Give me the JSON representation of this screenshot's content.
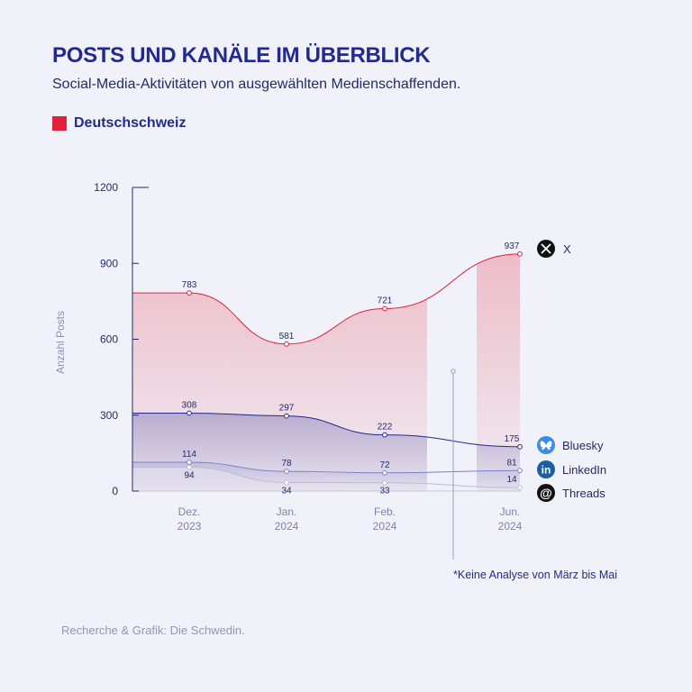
{
  "header": {
    "title": "POSTS UND KANÄLE IM ÜBERBLICK",
    "subtitle": "Social-Media-Aktivitäten von ausgewählten Medienschaffenden."
  },
  "region_legend": {
    "label": "Deutschschweiz",
    "color": "#e0223a"
  },
  "chart_data": {
    "type": "area",
    "x": [
      "Dez. 2023",
      "Jan. 2024",
      "Feb. 2024",
      "Jun. 2024"
    ],
    "x_ticks": [
      {
        "line1": "Dez.",
        "line2": "2023"
      },
      {
        "line1": "Jan.",
        "line2": "2024"
      },
      {
        "line1": "Feb.",
        "line2": "2024"
      },
      {
        "line1": "Jun.",
        "line2": "2024"
      }
    ],
    "ylabel": "Anzahl Posts",
    "ylim": [
      0,
      1200
    ],
    "yticks": [
      "0",
      "300",
      "600",
      "900",
      "1200"
    ],
    "gap": "März bis Mai",
    "series": [
      {
        "name": "X",
        "icon": "x-logo-icon",
        "color": "#e0223a",
        "values": [
          783,
          581,
          721,
          937
        ]
      },
      {
        "name": "Bluesky",
        "icon": "bluesky-butterfly-icon",
        "color": "#232a8f",
        "values": [
          308,
          297,
          222,
          175
        ]
      },
      {
        "name": "LinkedIn",
        "icon": "linkedin-logo-icon",
        "color": "#7d82c4",
        "values": [
          114,
          78,
          72,
          81
        ]
      },
      {
        "name": "Threads",
        "icon": "threads-logo-icon",
        "color": "#b9bbd2",
        "values": [
          94,
          34,
          33,
          14
        ]
      }
    ]
  },
  "footnote": "*Keine Analyse von März bis Mai",
  "credit": "Recherche & Grafik: Die Schwedin."
}
